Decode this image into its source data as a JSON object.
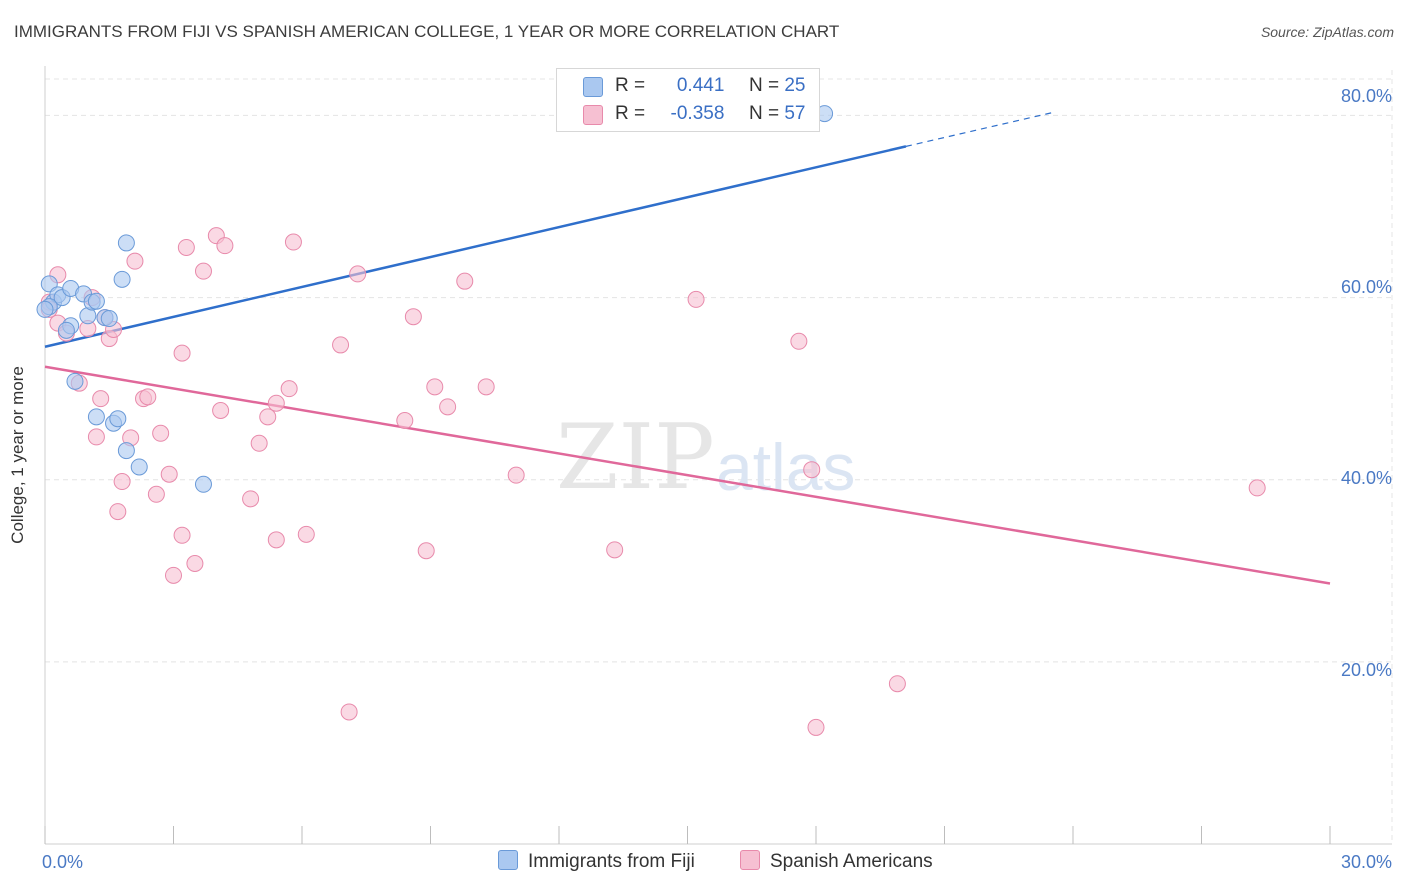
{
  "title": "IMMIGRANTS FROM FIJI VS SPANISH AMERICAN COLLEGE, 1 YEAR OR MORE CORRELATION CHART",
  "source": "Source: ZipAtlas.com",
  "colors": {
    "blue_fill": "#aac8f0",
    "blue_stroke": "#6a9ad8",
    "blue_line": "#2f6fcb",
    "pink_fill": "#f6c0d2",
    "pink_stroke": "#e88aab",
    "pink_line": "#e0689a",
    "tick_text": "#4a79c4",
    "grid": "#e4e4e4"
  },
  "stats": {
    "row1": {
      "r_label": "R =",
      "r_value": "0.441",
      "n_label": "N =",
      "n_value": "25"
    },
    "row2": {
      "r_label": "R =",
      "r_value": "-0.358",
      "n_label": "N =",
      "n_value": "57"
    }
  },
  "legend": {
    "series1": "Immigrants from Fiji",
    "series2": "Spanish Americans"
  },
  "watermark": {
    "zip": "ZIP",
    "atlas": "atlas"
  },
  "chart_data": {
    "type": "scatter",
    "xlabel": "",
    "ylabel": "College, 1 year or more",
    "xlim": [
      0,
      30
    ],
    "ylim": [
      0,
      84
    ],
    "x_ticks": [
      {
        "value": 0,
        "label": "0.0%"
      },
      {
        "value": 30,
        "label": "30.0%"
      }
    ],
    "y_ticks": [
      {
        "value": 20,
        "label": "20.0%"
      },
      {
        "value": 40,
        "label": "40.0%"
      },
      {
        "value": 60,
        "label": "60.0%"
      },
      {
        "value": 80,
        "label": "80.0%"
      }
    ],
    "series": [
      {
        "name": "Immigrants from Fiji",
        "r": 0.441,
        "n": 25,
        "trend": {
          "x0": 0,
          "y0": 54.6,
          "x1": 20.1,
          "y1": 76.6,
          "dash_x1": 23.6,
          "dash_y1": 80.4
        },
        "points": [
          [
            0.1,
            61.5
          ],
          [
            0.2,
            59.5
          ],
          [
            0.3,
            60.3
          ],
          [
            0.4,
            60.0
          ],
          [
            0.6,
            56.9
          ],
          [
            0.5,
            56.4
          ],
          [
            0.6,
            61.0
          ],
          [
            0.9,
            60.4
          ],
          [
            1.0,
            58.0
          ],
          [
            1.1,
            59.5
          ],
          [
            1.2,
            59.6
          ],
          [
            1.4,
            57.8
          ],
          [
            1.5,
            57.7
          ],
          [
            1.9,
            66.0
          ],
          [
            1.8,
            62.0
          ],
          [
            0.7,
            50.8
          ],
          [
            1.2,
            46.9
          ],
          [
            1.6,
            46.2
          ],
          [
            1.7,
            46.7
          ],
          [
            1.9,
            43.2
          ],
          [
            2.2,
            41.4
          ],
          [
            3.7,
            39.5
          ],
          [
            18.2,
            80.2
          ],
          [
            0.1,
            59.0
          ],
          [
            0.0,
            58.7
          ]
        ]
      },
      {
        "name": "Spanish Americans",
        "r": -0.358,
        "n": 57,
        "trend": {
          "x0": 0,
          "y0": 52.4,
          "x1": 30,
          "y1": 28.6
        },
        "points": [
          [
            0.1,
            59.5
          ],
          [
            0.1,
            58.7
          ],
          [
            0.3,
            62.5
          ],
          [
            0.3,
            57.2
          ],
          [
            0.5,
            56.1
          ],
          [
            0.8,
            50.6
          ],
          [
            1.0,
            56.6
          ],
          [
            1.1,
            60.0
          ],
          [
            1.2,
            44.7
          ],
          [
            1.3,
            48.9
          ],
          [
            1.4,
            57.8
          ],
          [
            1.5,
            55.5
          ],
          [
            1.6,
            56.5
          ],
          [
            1.7,
            36.5
          ],
          [
            1.8,
            39.8
          ],
          [
            2.0,
            44.6
          ],
          [
            2.1,
            64.0
          ],
          [
            2.3,
            48.9
          ],
          [
            2.4,
            49.1
          ],
          [
            2.6,
            38.4
          ],
          [
            2.7,
            45.1
          ],
          [
            2.9,
            40.6
          ],
          [
            3.0,
            29.5
          ],
          [
            3.2,
            33.9
          ],
          [
            3.2,
            53.9
          ],
          [
            3.3,
            65.5
          ],
          [
            3.5,
            30.8
          ],
          [
            3.7,
            62.9
          ],
          [
            4.0,
            66.8
          ],
          [
            4.1,
            47.6
          ],
          [
            4.2,
            65.7
          ],
          [
            4.8,
            37.9
          ],
          [
            5.0,
            44.0
          ],
          [
            5.2,
            46.9
          ],
          [
            5.4,
            48.4
          ],
          [
            5.4,
            33.4
          ],
          [
            5.7,
            50.0
          ],
          [
            5.8,
            66.1
          ],
          [
            6.1,
            34.0
          ],
          [
            6.9,
            54.8
          ],
          [
            7.1,
            14.5
          ],
          [
            7.3,
            62.6
          ],
          [
            8.4,
            46.5
          ],
          [
            8.6,
            57.9
          ],
          [
            8.9,
            32.2
          ],
          [
            9.1,
            50.2
          ],
          [
            9.4,
            48.0
          ],
          [
            9.8,
            61.8
          ],
          [
            10.3,
            50.2
          ],
          [
            11.0,
            40.5
          ],
          [
            13.3,
            32.3
          ],
          [
            15.2,
            59.8
          ],
          [
            17.6,
            55.2
          ],
          [
            18.0,
            12.8
          ],
          [
            17.9,
            41.1
          ],
          [
            19.9,
            17.6
          ],
          [
            28.3,
            39.1
          ]
        ]
      }
    ]
  }
}
